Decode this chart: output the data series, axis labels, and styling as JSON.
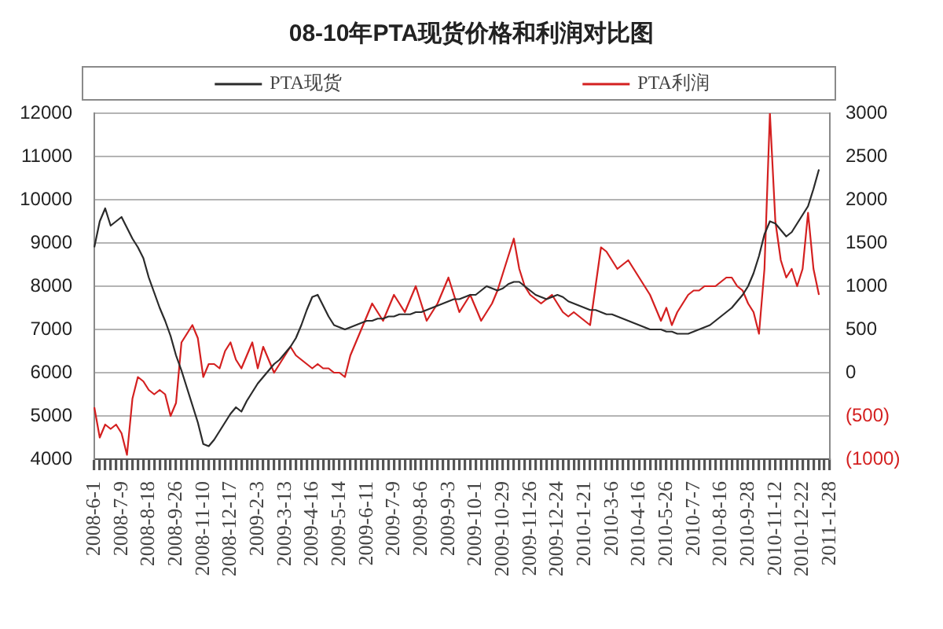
{
  "chart_data": {
    "type": "line",
    "title": "08-10年PTA现货价格和利润对比图",
    "categories": [
      "2008-6-1",
      null,
      null,
      null,
      null,
      "2008-7-9",
      null,
      null,
      null,
      null,
      "2008-8-18",
      null,
      null,
      null,
      null,
      "2008-9-26",
      null,
      null,
      null,
      null,
      "2008-11-10",
      null,
      null,
      null,
      null,
      "2008-12-17",
      null,
      null,
      null,
      null,
      "2009-2-3",
      null,
      null,
      null,
      null,
      "2009-3-13",
      null,
      null,
      null,
      null,
      "2009-4-16",
      null,
      null,
      null,
      null,
      "2009-5-14",
      null,
      null,
      null,
      null,
      "2009-6-11",
      null,
      null,
      null,
      null,
      "2009-7-9",
      null,
      null,
      null,
      null,
      "2009-8-6",
      null,
      null,
      null,
      null,
      "2009-9-3",
      null,
      null,
      null,
      null,
      "2009-10-1",
      null,
      null,
      null,
      null,
      "2009-10-29",
      null,
      null,
      null,
      null,
      "2009-11-26",
      null,
      null,
      null,
      null,
      "2009-12-24",
      null,
      null,
      null,
      null,
      "2010-1-21",
      null,
      null,
      null,
      null,
      "2010-3-6",
      null,
      null,
      null,
      null,
      "2010-4-16",
      null,
      null,
      null,
      null,
      "2010-5-26",
      null,
      null,
      null,
      null,
      "2010-7-7",
      null,
      null,
      null,
      null,
      "2010-8-16",
      null,
      null,
      null,
      null,
      "2010-9-28",
      null,
      null,
      null,
      null,
      "2010-11-12",
      null,
      null,
      null,
      null,
      "2010-12-22",
      null,
      null,
      null,
      null,
      "2011-1-28"
    ],
    "series": [
      {
        "name": "PTA现货",
        "color": "#2b2b2b",
        "values": [
          8900,
          9500,
          9800,
          9400,
          9500,
          9600,
          9350,
          9100,
          8900,
          8650,
          8200,
          7850,
          7500,
          7200,
          6850,
          6400,
          6050,
          5650,
          5250,
          4850,
          4350,
          4300,
          4450,
          4650,
          4850,
          5050,
          5200,
          5100,
          5350,
          5550,
          5750,
          5900,
          6050,
          6200,
          6300,
          6450,
          6600,
          6800,
          7100,
          7450,
          7750,
          7800,
          7550,
          7300,
          7100,
          7050,
          7000,
          7050,
          7100,
          7150,
          7200,
          7200,
          7250,
          7250,
          7300,
          7300,
          7350,
          7350,
          7350,
          7400,
          7400,
          7450,
          7500,
          7550,
          7600,
          7650,
          7700,
          7700,
          7750,
          7800,
          7800,
          7900,
          8000,
          7950,
          7900,
          7950,
          8050,
          8100,
          8100,
          8000,
          7900,
          7800,
          7750,
          7700,
          7750,
          7800,
          7750,
          7650,
          7600,
          7550,
          7500,
          7450,
          7450,
          7400,
          7350,
          7350,
          7300,
          7250,
          7200,
          7150,
          7100,
          7050,
          7000,
          7000,
          7000,
          6950,
          6950,
          6900,
          6900,
          6900,
          6950,
          7000,
          7050,
          7100,
          7200,
          7300,
          7400,
          7500,
          7650,
          7800,
          8000,
          8300,
          8700,
          9200,
          9500,
          9450,
          9300,
          9150,
          9250,
          9450,
          9650,
          9850,
          10250,
          10700,
          null,
          null
        ]
      },
      {
        "name": "PTA利润",
        "color": "#d42020",
        "axis": "y2",
        "values": [
          -400,
          -750,
          -600,
          -650,
          -600,
          -700,
          -950,
          -300,
          -50,
          -100,
          -200,
          -250,
          -200,
          -250,
          -500,
          -350,
          350,
          450,
          550,
          400,
          -50,
          100,
          100,
          50,
          250,
          350,
          150,
          50,
          200,
          350,
          50,
          300,
          150,
          0,
          100,
          200,
          300,
          200,
          150,
          100,
          50,
          100,
          50,
          50,
          0,
          0,
          -50,
          200,
          350,
          500,
          650,
          800,
          700,
          600,
          750,
          900,
          800,
          700,
          850,
          1000,
          800,
          600,
          700,
          800,
          950,
          1100,
          900,
          700,
          800,
          900,
          750,
          600,
          700,
          800,
          950,
          1150,
          1350,
          1550,
          1200,
          1000,
          900,
          850,
          800,
          850,
          900,
          800,
          700,
          650,
          700,
          650,
          600,
          550,
          1000,
          1450,
          1400,
          1300,
          1200,
          1250,
          1300,
          1200,
          1100,
          1000,
          900,
          750,
          600,
          750,
          550,
          700,
          800,
          900,
          950,
          950,
          1000,
          1000,
          1000,
          1050,
          1100,
          1100,
          1000,
          950,
          800,
          700,
          450,
          1200,
          3000,
          1750,
          1300,
          1100,
          1200,
          1000,
          1200,
          1850,
          1200,
          900,
          null,
          null
        ]
      }
    ],
    "ylim": [
      4000,
      12000
    ],
    "yticks": [
      4000,
      5000,
      6000,
      7000,
      8000,
      9000,
      10000,
      11000,
      12000
    ],
    "y2lim": [
      -1000,
      3000
    ],
    "y2ticks": [
      {
        "value": -1000,
        "label": "(1000)"
      },
      {
        "value": -500,
        "label": "(500)"
      },
      0,
      500,
      1000,
      1500,
      2000,
      2500,
      3000
    ],
    "grid": "y",
    "legend": "top",
    "marker": "none"
  }
}
